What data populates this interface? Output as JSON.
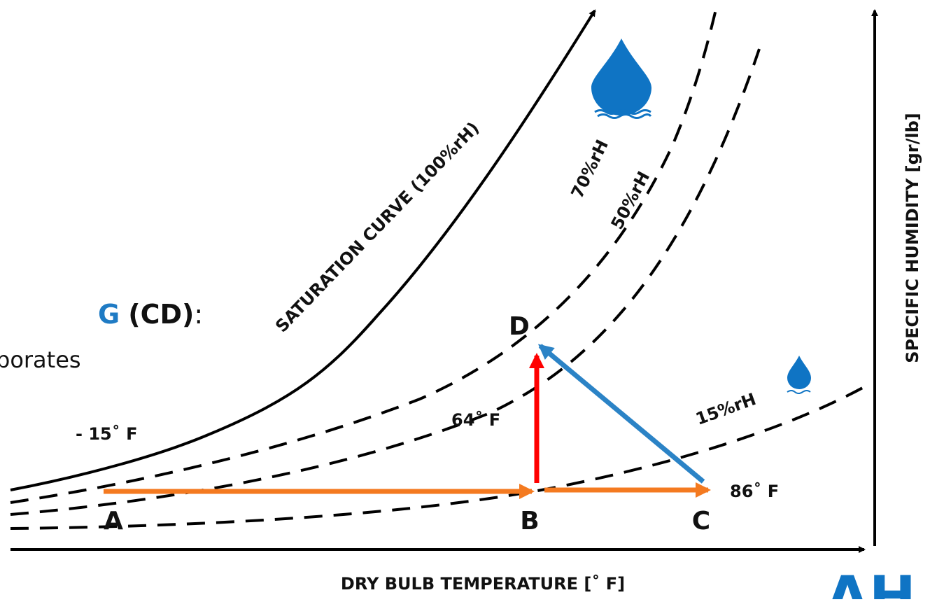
{
  "side_text": {
    "heading_highlight": "G",
    "heading_rest": "(CD)",
    "colon": ":",
    "line2": "porates"
  },
  "curves": {
    "saturation": "SATURATION CURVE (100%rH)",
    "rh70": "70%rH",
    "rh50": "50%rH",
    "rh15": "15%rH"
  },
  "points": {
    "a": "A",
    "b": "B",
    "c": "C",
    "d": "D"
  },
  "temperatures": {
    "a": "- 15˚ F",
    "d": "64˚ F",
    "c": "86˚ F"
  },
  "axes": {
    "x": "DRY BULB TEMPERATURE [˚ F]",
    "y": "SPECIFIC HUMIDITY [gr/lb]"
  },
  "logo": "AH"
}
